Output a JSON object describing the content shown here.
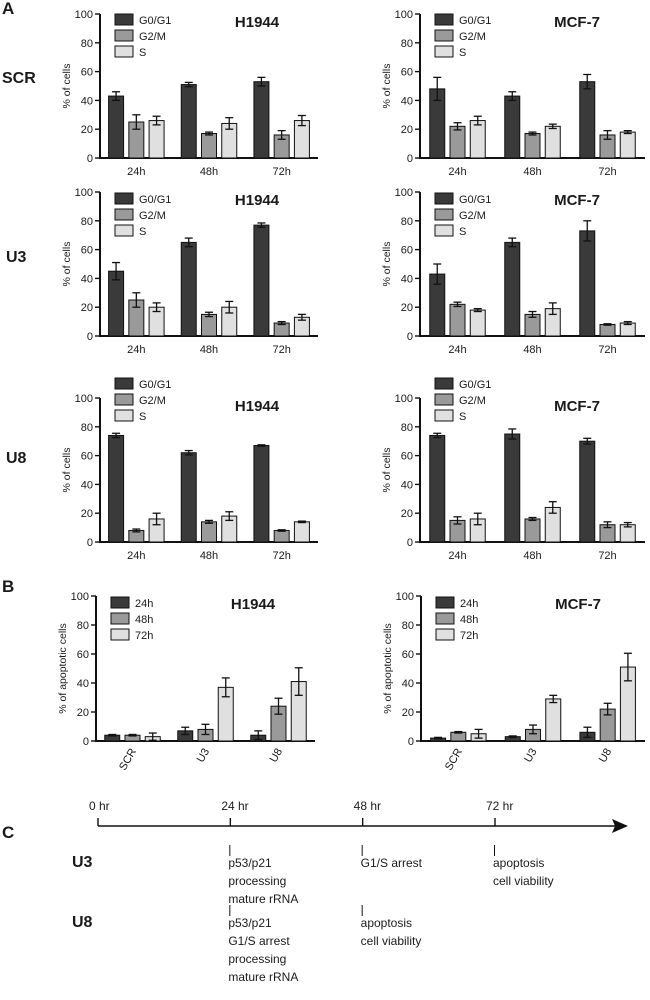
{
  "colors": {
    "dark": "#3a3a3a",
    "mid": "#9a9a9a",
    "light": "#e0e0e0",
    "line": "#111111"
  },
  "panels": {
    "a": "A",
    "b": "B",
    "c": "C"
  },
  "row_labels": [
    "SCR",
    "U3",
    "U8"
  ],
  "chart_data": [
    {
      "id": "A-SCR-H1944",
      "type": "bar",
      "title": "H1944",
      "ylabel": "% of cells",
      "ylim": [
        0,
        100
      ],
      "yticks": [
        0,
        20,
        40,
        60,
        80,
        100
      ],
      "categories": [
        "24h",
        "48h",
        "72h"
      ],
      "series": [
        {
          "name": "G0/G1",
          "color": "dark",
          "values": [
            43,
            51,
            53
          ],
          "errors": [
            3,
            1.5,
            3
          ]
        },
        {
          "name": "G2/M",
          "color": "mid",
          "values": [
            25,
            17,
            16
          ],
          "errors": [
            5,
            1,
            3
          ]
        },
        {
          "name": "S",
          "color": "light",
          "values": [
            26,
            24,
            26
          ],
          "errors": [
            3,
            4,
            3.5
          ]
        }
      ]
    },
    {
      "id": "A-SCR-MCF7",
      "type": "bar",
      "title": "MCF-7",
      "ylabel": "% of cells",
      "ylim": [
        0,
        100
      ],
      "yticks": [
        0,
        20,
        40,
        60,
        80,
        100
      ],
      "categories": [
        "24h",
        "48h",
        "72h"
      ],
      "series": [
        {
          "name": "G0/G1",
          "color": "dark",
          "values": [
            48,
            43,
            53
          ],
          "errors": [
            8,
            3,
            5
          ]
        },
        {
          "name": "G2/M",
          "color": "mid",
          "values": [
            22,
            17,
            16
          ],
          "errors": [
            2.5,
            1,
            3
          ]
        },
        {
          "name": "S",
          "color": "light",
          "values": [
            26,
            22,
            18
          ],
          "errors": [
            3,
            1.5,
            1
          ]
        }
      ]
    },
    {
      "id": "A-U3-H1944",
      "type": "bar",
      "title": "H1944",
      "ylabel": "% of cells",
      "ylim": [
        0,
        100
      ],
      "yticks": [
        0,
        20,
        40,
        60,
        80,
        100
      ],
      "categories": [
        "24h",
        "48h",
        "72h"
      ],
      "series": [
        {
          "name": "G0/G1",
          "color": "dark",
          "values": [
            45,
            65,
            77
          ],
          "errors": [
            6,
            3,
            1.5
          ]
        },
        {
          "name": "G2/M",
          "color": "mid",
          "values": [
            25,
            15,
            9
          ],
          "errors": [
            5,
            1.5,
            1
          ]
        },
        {
          "name": "S",
          "color": "light",
          "values": [
            20,
            20,
            13
          ],
          "errors": [
            3,
            4,
            2
          ]
        }
      ]
    },
    {
      "id": "A-U3-MCF7",
      "type": "bar",
      "title": "MCF-7",
      "ylabel": "% of cells",
      "ylim": [
        0,
        100
      ],
      "yticks": [
        0,
        20,
        40,
        60,
        80,
        100
      ],
      "categories": [
        "24h",
        "48h",
        "72h"
      ],
      "series": [
        {
          "name": "G0/G1",
          "color": "dark",
          "values": [
            43,
            65,
            73
          ],
          "errors": [
            7,
            3,
            7
          ]
        },
        {
          "name": "G2/M",
          "color": "mid",
          "values": [
            22,
            15,
            8
          ],
          "errors": [
            1.5,
            2,
            0.5
          ]
        },
        {
          "name": "S",
          "color": "light",
          "values": [
            18,
            19,
            9
          ],
          "errors": [
            1,
            4,
            1
          ]
        }
      ]
    },
    {
      "id": "A-U8-H1944",
      "type": "bar",
      "title": "H1944",
      "ylabel": "% of cells",
      "ylim": [
        0,
        100
      ],
      "yticks": [
        0,
        20,
        40,
        60,
        80,
        100
      ],
      "categories": [
        "24h",
        "48h",
        "72h"
      ],
      "series": [
        {
          "name": "G0/G1",
          "color": "dark",
          "values": [
            74,
            62,
            67
          ],
          "errors": [
            1.5,
            1.5,
            0.5
          ]
        },
        {
          "name": "G2/M",
          "color": "mid",
          "values": [
            8,
            14,
            8
          ],
          "errors": [
            1,
            1,
            0.5
          ]
        },
        {
          "name": "S",
          "color": "light",
          "values": [
            16,
            18,
            14
          ],
          "errors": [
            4,
            3,
            0.5
          ]
        }
      ]
    },
    {
      "id": "A-U8-MCF7",
      "type": "bar",
      "title": "MCF-7",
      "ylabel": "% of cells",
      "ylim": [
        0,
        100
      ],
      "yticks": [
        0,
        20,
        40,
        60,
        80,
        100
      ],
      "categories": [
        "24h",
        "48h",
        "72h"
      ],
      "series": [
        {
          "name": "G0/G1",
          "color": "dark",
          "values": [
            74,
            75,
            70
          ],
          "errors": [
            1.5,
            3.5,
            2
          ]
        },
        {
          "name": "G2/M",
          "color": "mid",
          "values": [
            15,
            16,
            12
          ],
          "errors": [
            2.5,
            1,
            2
          ]
        },
        {
          "name": "S",
          "color": "light",
          "values": [
            16,
            24,
            12
          ],
          "errors": [
            4,
            4,
            1.5
          ]
        }
      ]
    },
    {
      "id": "B-H1944",
      "type": "bar",
      "title": "H1944",
      "ylabel": "% of apoptotic cells",
      "ylim": [
        0,
        100
      ],
      "yticks": [
        0,
        20,
        40,
        60,
        80,
        100
      ],
      "categories": [
        "SCR",
        "U3",
        "U8"
      ],
      "rotated_ticks": true,
      "series": [
        {
          "name": "24h",
          "color": "dark",
          "values": [
            4,
            7,
            4
          ],
          "errors": [
            0.5,
            2.5,
            3
          ]
        },
        {
          "name": "48h",
          "color": "mid",
          "values": [
            4,
            8,
            24
          ],
          "errors": [
            0.5,
            3.5,
            5.5
          ]
        },
        {
          "name": "72h",
          "color": "light",
          "values": [
            3,
            37,
            41
          ],
          "errors": [
            2.5,
            6.5,
            9.5
          ]
        }
      ]
    },
    {
      "id": "B-MCF7",
      "type": "bar",
      "title": "MCF-7",
      "ylabel": "% of apoptotic cells",
      "ylim": [
        0,
        100
      ],
      "yticks": [
        0,
        20,
        40,
        60,
        80,
        100
      ],
      "categories": [
        "SCR",
        "U3",
        "U8"
      ],
      "rotated_ticks": true,
      "series": [
        {
          "name": "24h",
          "color": "dark",
          "values": [
            2,
            3,
            6
          ],
          "errors": [
            0.5,
            0.5,
            3.5
          ]
        },
        {
          "name": "48h",
          "color": "mid",
          "values": [
            6,
            8,
            22
          ],
          "errors": [
            0.5,
            3,
            4
          ]
        },
        {
          "name": "72h",
          "color": "light",
          "values": [
            5,
            29,
            51
          ],
          "errors": [
            3,
            2.5,
            9.5
          ]
        }
      ]
    }
  ],
  "timeline": {
    "ticks": [
      "0 hr",
      "24 hr",
      "48 hr",
      "72 hr"
    ],
    "rows": [
      {
        "label": "U3",
        "events": [
          {
            "hour": 24,
            "lines": [
              "p53/p21",
              "processing",
              "mature rRNA"
            ]
          },
          {
            "hour": 48,
            "lines": [
              "G1/S arrest"
            ]
          },
          {
            "hour": 72,
            "lines": [
              "apoptosis",
              "cell viability"
            ]
          }
        ]
      },
      {
        "label": "U8",
        "events": [
          {
            "hour": 24,
            "lines": [
              "p53/p21",
              "G1/S arrest",
              "processing",
              "mature rRNA"
            ]
          },
          {
            "hour": 48,
            "lines": [
              "apoptosis",
              "cell viability"
            ]
          }
        ]
      }
    ]
  }
}
